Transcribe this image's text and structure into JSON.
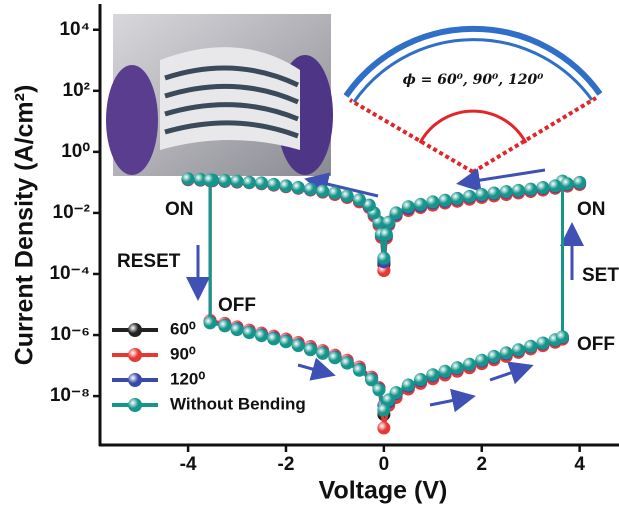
{
  "chart_data": {
    "type": "line",
    "xlabel": "Voltage (V)",
    "ylabel": "Current Density (A/cm²)",
    "annotations": [
      "ON",
      "RESET",
      "OFF",
      "ON",
      "SET",
      "OFF",
      "ϕ = 60⁰, 90⁰, 120⁰"
    ],
    "xlim": [
      -5.8,
      4.6
    ],
    "xticks": [
      -4,
      -2,
      0,
      2,
      4
    ],
    "ylim": [
      2.5e-10,
      60000
    ],
    "log_y": true,
    "yticks": [
      {
        "value": 10000,
        "label": "10⁴"
      },
      {
        "value": 100,
        "label": "10²"
      },
      {
        "value": 1,
        "label": "10⁰"
      },
      {
        "value": 0.01,
        "label": "10⁻²"
      },
      {
        "value": 0.0001,
        "label": "10⁻⁴"
      },
      {
        "value": 1e-06,
        "label": "10⁻⁶"
      },
      {
        "value": 1e-08,
        "label": "10⁻⁸"
      }
    ],
    "legend": "lower left",
    "x": [
      0,
      -0.05,
      -0.1,
      -0.2,
      -0.3,
      -0.5,
      -0.75,
      -1,
      -1.25,
      -1.5,
      -1.75,
      -2,
      -2.25,
      -2.5,
      -2.75,
      -3,
      -3.25,
      -3.5,
      -3.75,
      -4,
      -3.55,
      -3.55,
      -3.25,
      -3,
      -2.75,
      -2.5,
      -2.25,
      -2,
      -1.75,
      -1.5,
      -1.25,
      -1,
      -0.75,
      -0.5,
      -0.25,
      -0.1,
      0,
      0.1,
      0.25,
      0.5,
      0.75,
      1,
      1.25,
      1.5,
      1.75,
      2,
      2.25,
      2.5,
      2.75,
      3,
      3.25,
      3.5,
      3.65,
      3.65,
      4,
      3.75,
      3.5,
      3.25,
      3,
      2.75,
      2.5,
      2.25,
      2,
      1.75,
      1.5,
      1.25,
      1,
      0.75,
      0.5,
      0.25,
      0.1,
      0.05,
      0
    ],
    "series": [
      {
        "name": "60⁰",
        "color": "#222222",
        "values": [
          0.0002,
          0.0018,
          0.0045,
          0.009,
          0.016,
          0.025,
          0.034,
          0.042,
          0.05,
          0.058,
          0.066,
          0.075,
          0.084,
          0.093,
          0.1,
          0.105,
          0.11,
          0.115,
          0.12,
          0.125,
          0.115,
          2.8e-06,
          2.2e-06,
          1.7e-06,
          1.35e-06,
          1.05e-06,
          8.5e-07,
          6.8e-07,
          5.2e-07,
          3.8e-07,
          2.8e-07,
          2e-07,
          1.35e-07,
          8e-08,
          3.8e-08,
          1.8e-08,
          2.5e-09,
          6e-09,
          1.1e-08,
          2e-08,
          3e-08,
          4.3e-08,
          5.6e-08,
          7.5e-08,
          9.8e-08,
          1.3e-07,
          1.75e-07,
          2.3e-07,
          3e-07,
          3.9e-07,
          5e-07,
          6.4e-07,
          8e-07,
          0.1,
          0.09,
          0.08,
          0.068,
          0.06,
          0.053,
          0.048,
          0.043,
          0.039,
          0.034,
          0.03,
          0.026,
          0.022,
          0.019,
          0.016,
          0.013,
          0.0085,
          0.0042,
          0.0017,
          0.00022
        ]
      },
      {
        "name": "90⁰",
        "color": "#e53935",
        "values": [
          0.00013,
          0.0016,
          0.004,
          0.008,
          0.015,
          0.023,
          0.032,
          0.04,
          0.048,
          0.056,
          0.064,
          0.072,
          0.081,
          0.09,
          0.097,
          0.102,
          0.108,
          0.113,
          0.118,
          0.122,
          0.113,
          3e-06,
          2.4e-06,
          1.85e-06,
          1.45e-06,
          1.15e-06,
          9.2e-07,
          7.4e-07,
          5.7e-07,
          4.2e-07,
          3.1e-07,
          2.2e-07,
          1.5e-07,
          9e-08,
          4.2e-08,
          1.9e-08,
          9e-10,
          5e-09,
          9e-09,
          1.7e-08,
          2.6e-08,
          3.7e-08,
          4.9e-08,
          6.5e-08,
          8.5e-08,
          1.15e-07,
          1.55e-07,
          2e-07,
          2.7e-07,
          3.5e-07,
          4.5e-07,
          5.8e-07,
          7.3e-07,
          0.095,
          0.085,
          0.075,
          0.064,
          0.056,
          0.05,
          0.045,
          0.04,
          0.036,
          0.032,
          0.028,
          0.024,
          0.021,
          0.018,
          0.015,
          0.012,
          0.008,
          0.004,
          0.0015,
          0.00013
        ]
      },
      {
        "name": "120⁰",
        "color": "#3949ab",
        "values": [
          0.00025,
          0.0019,
          0.0048,
          0.0095,
          0.017,
          0.026,
          0.035,
          0.044,
          0.051,
          0.059,
          0.067,
          0.076,
          0.085,
          0.094,
          0.1,
          0.108,
          0.112,
          0.118,
          0.122,
          0.128,
          0.118,
          2.6e-06,
          2.1e-06,
          1.6e-06,
          1.25e-06,
          1e-06,
          8e-07,
          6.4e-07,
          4.8e-07,
          3.5e-07,
          2.6e-07,
          1.9e-07,
          1.25e-07,
          7.5e-08,
          3.6e-08,
          1.7e-08,
          5e-09,
          6.5e-09,
          1.2e-08,
          2.1e-08,
          3.2e-08,
          4.6e-08,
          6e-08,
          8e-08,
          1.05e-07,
          1.4e-07,
          1.85e-07,
          2.4e-07,
          3.1e-07,
          4.1e-07,
          5.2e-07,
          6.7e-07,
          8.3e-07,
          0.105,
          0.095,
          0.085,
          0.072,
          0.064,
          0.057,
          0.052,
          0.047,
          0.042,
          0.037,
          0.033,
          0.028,
          0.024,
          0.021,
          0.017,
          0.014,
          0.009,
          0.0046,
          0.0018,
          0.00028
        ]
      },
      {
        "name": "Without Bending",
        "color": "#15958b",
        "values": [
          0.00033,
          0.002,
          0.005,
          0.01,
          0.018,
          0.027,
          0.036,
          0.045,
          0.052,
          0.06,
          0.068,
          0.077,
          0.086,
          0.096,
          0.1,
          0.11,
          0.115,
          0.12,
          0.125,
          0.13,
          0.12,
          2.5e-06,
          2e-06,
          1.5e-06,
          1.2e-06,
          9.5e-07,
          7.5e-07,
          6e-07,
          4.5e-07,
          3.3e-07,
          2.5e-07,
          1.8e-07,
          1.2e-07,
          7e-08,
          3.4e-08,
          1.6e-08,
          3.5e-09,
          7.5e-09,
          1.3e-08,
          2.3e-08,
          3.5e-08,
          5e-08,
          6.5e-08,
          8.5e-08,
          1.1e-07,
          1.5e-07,
          2e-07,
          2.6e-07,
          3.3e-07,
          4.3e-07,
          5.5e-07,
          7e-07,
          8.7e-07,
          0.11,
          0.1,
          0.09,
          0.077,
          0.068,
          0.06,
          0.055,
          0.05,
          0.045,
          0.04,
          0.035,
          0.03,
          0.026,
          0.023,
          0.019,
          0.016,
          0.01,
          0.005,
          0.002,
          0.00033
        ]
      }
    ]
  }
}
